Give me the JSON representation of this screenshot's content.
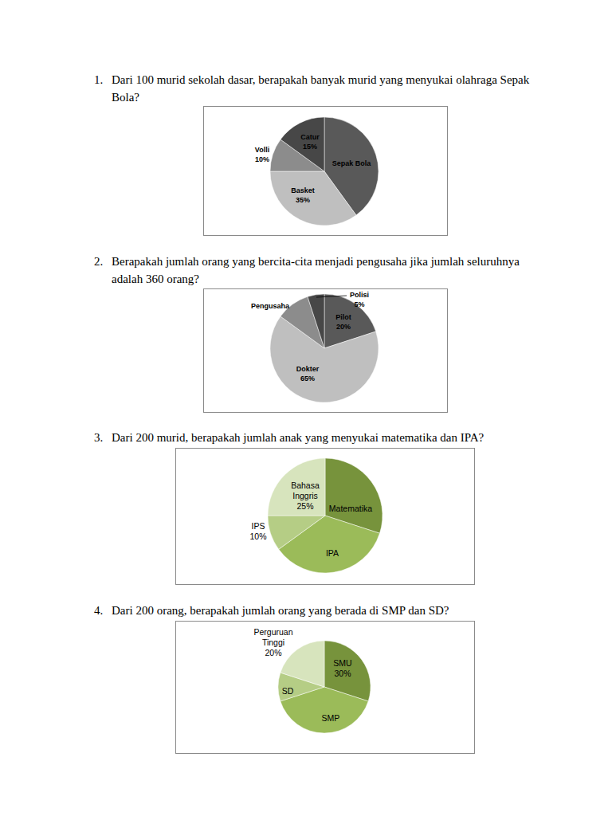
{
  "questions": [
    {
      "number": "1.",
      "text": "Dari 100 murid sekolah dasar, berapakah banyak murid yang menyukai olahraga Sepak Bola?"
    },
    {
      "number": "2.",
      "text": "Berapakah jumlah orang yang bercita-cita menjadi pengusaha jika jumlah seluruhnya adalah 360 orang?"
    },
    {
      "number": "3.",
      "text": "Dari 200 murid, berapakah jumlah anak yang menyukai matematika dan IPA?"
    },
    {
      "number": "4.",
      "text": "Dari 200 orang, berapakah jumlah orang yang berada di SMP dan SD?"
    }
  ],
  "chart_data": [
    {
      "type": "pie",
      "categories": [
        "Sepak Bola",
        "Basket",
        "Volli",
        "Catur"
      ],
      "values": [
        40,
        35,
        10,
        15
      ],
      "value_labels": [
        null,
        "35%",
        "10%",
        "15%"
      ],
      "data_labels": true,
      "colors": [
        "#595959",
        "#bfbfbf",
        "#8c8c8c",
        "#474747"
      ]
    },
    {
      "type": "pie",
      "categories": [
        "Pilot",
        "Dokter",
        "Pengusaha",
        "Polisi"
      ],
      "values": [
        20,
        65,
        10,
        5
      ],
      "value_labels": [
        "20%",
        "65%",
        null,
        "5%"
      ],
      "data_labels": true,
      "colors": [
        "#595959",
        "#bfbfbf",
        "#8c8c8c",
        "#474747"
      ]
    },
    {
      "type": "pie",
      "categories": [
        "Matematika",
        "IPA",
        "IPS",
        "Bahasa Inggris"
      ],
      "values": [
        30,
        35,
        10,
        25
      ],
      "value_labels": [
        null,
        null,
        "10%",
        "25%"
      ],
      "data_labels": true,
      "colors": [
        "#77933c",
        "#9bbb59",
        "#b5cd85",
        "#d7e4bd"
      ]
    },
    {
      "type": "pie",
      "categories": [
        "SMU",
        "SMP",
        "SD",
        "Perguruan Tinggi"
      ],
      "values": [
        30,
        40,
        10,
        20
      ],
      "value_labels": [
        "30%",
        null,
        null,
        "20%"
      ],
      "data_labels": true,
      "colors": [
        "#77933c",
        "#9bbb59",
        "#b5cd85",
        "#d7e4bd"
      ]
    }
  ]
}
